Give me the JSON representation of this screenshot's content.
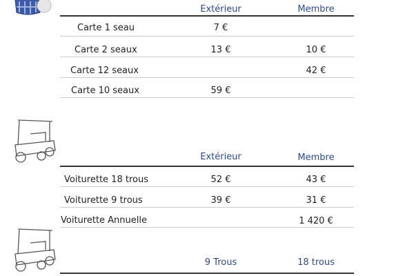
{
  "buckets": {
    "headers": [
      "Extérieur",
      "Membre"
    ],
    "rows": [
      {
        "label": "Carte 1 seau",
        "exterieur": "7 €",
        "membre": ""
      },
      {
        "label": "Carte 2 seaux",
        "exterieur": "13 €",
        "membre": "10 €"
      },
      {
        "label": "Carte 12 seaux",
        "exterieur": "",
        "membre": "42 €"
      },
      {
        "label": "Carte 10 seaux",
        "exterieur": "59 €",
        "membre": ""
      }
    ]
  },
  "carts": {
    "headers": [
      "Extérieur",
      "Membre"
    ],
    "rows": [
      {
        "label": "Voiturette 18 trous",
        "exterieur": "52 €",
        "membre": "43  €"
      },
      {
        "label": "Voiturette 9 trous",
        "exterieur": "39 €",
        "membre": "31 €"
      },
      {
        "label": "Voiturette Annuelle",
        "exterieur": "",
        "membre": "1 420 €"
      }
    ]
  },
  "third": {
    "headers": [
      "9 Trous",
      "18 trous"
    ]
  },
  "colors": {
    "header": "#2f4a8a"
  }
}
